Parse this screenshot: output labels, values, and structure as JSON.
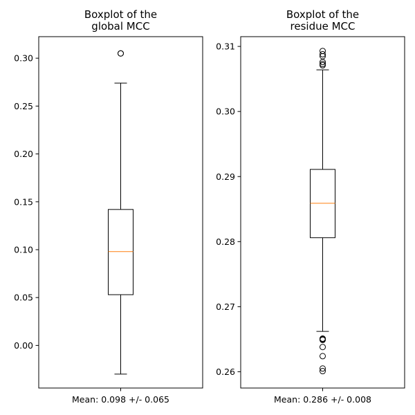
{
  "colors": {
    "box": "#000000",
    "median": "#ff7f0e",
    "background": "#ffffff"
  },
  "chart_data": [
    {
      "type": "box",
      "title": [
        "Boxplot of the",
        "global MCC"
      ],
      "xlabel": "Mean: 0.098 +/- 0.065",
      "ylabel": "",
      "ylim": [
        -0.0445,
        0.3225
      ],
      "yticks": [
        0.0,
        0.05,
        0.1,
        0.15,
        0.2,
        0.25,
        0.3
      ],
      "ytick_labels": [
        "0.00",
        "0.05",
        "0.10",
        "0.15",
        "0.20",
        "0.25",
        "0.30"
      ],
      "box": {
        "whisker_low": -0.03,
        "q1": 0.053,
        "median": 0.098,
        "q3": 0.142,
        "whisker_high": 0.274
      },
      "outliers": [
        0.305,
        0.305
      ],
      "grid": false
    },
    {
      "type": "box",
      "title": [
        "Boxplot of the",
        "residue MCC"
      ],
      "xlabel": "Mean: 0.286 +/- 0.008",
      "ylabel": "",
      "ylim": [
        0.2575,
        0.3115
      ],
      "yticks": [
        0.26,
        0.27,
        0.28,
        0.29,
        0.3,
        0.31
      ],
      "ytick_labels": [
        "0.26",
        "0.27",
        "0.28",
        "0.29",
        "0.30",
        "0.31"
      ],
      "box": {
        "whisker_low": 0.2662,
        "q1": 0.2806,
        "median": 0.2859,
        "q3": 0.2911,
        "whisker_high": 0.3064
      },
      "outliers": [
        0.2601,
        0.2605,
        0.2624,
        0.2638,
        0.2649,
        0.265,
        0.2651,
        0.3071,
        0.3073,
        0.3076,
        0.3085,
        0.3088,
        0.3093
      ],
      "grid": false
    }
  ]
}
